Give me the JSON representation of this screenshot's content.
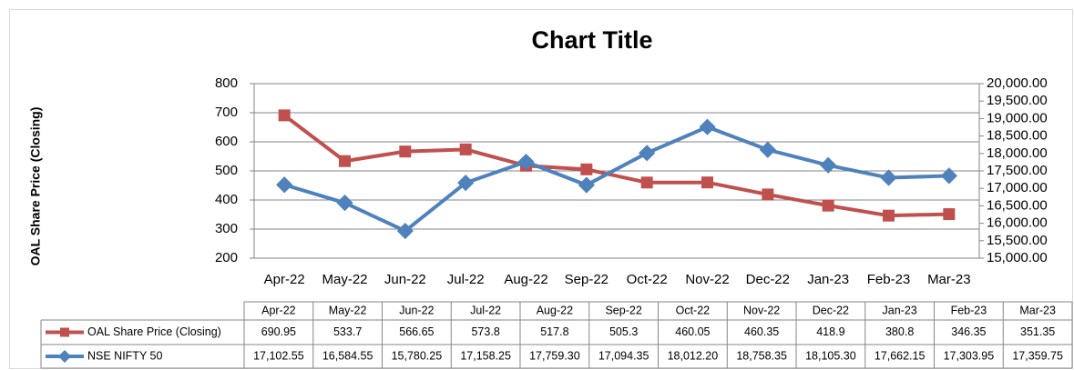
{
  "chart_data": {
    "type": "line",
    "title": "Chart Title",
    "y_label": "OAL Share Price (Closing)",
    "categories": [
      "Apr-22",
      "May-22",
      "Jun-22",
      "Jul-22",
      "Aug-22",
      "Sep-22",
      "Oct-22",
      "Nov-22",
      "Dec-22",
      "Jan-23",
      "Feb-23",
      "Mar-23"
    ],
    "series": [
      {
        "name": "OAL Share Price (Closing)",
        "color": "#c0504d",
        "marker": "square",
        "axis": "y",
        "values": [
          690.95,
          533.7,
          566.65,
          573.8,
          517.8,
          505.3,
          460.05,
          460.35,
          418.9,
          380.8,
          346.35,
          351.35
        ]
      },
      {
        "name": "NSE NIFTY 50",
        "color": "#4f81bd",
        "marker": "diamond",
        "axis": "y2",
        "values": [
          17102.55,
          16584.55,
          15780.25,
          17158.25,
          17759.3,
          17094.35,
          18012.2,
          18758.35,
          18105.3,
          17662.15,
          17303.95,
          17359.75
        ],
        "value_labels": [
          "17,102.55",
          "16,584.55",
          "15,780.25",
          "17,158.25",
          "17,759.30",
          "17,094.35",
          "18,012.20",
          "18,758.35",
          "18,105.30",
          "17,662.15",
          "17,303.95",
          "17,359.75"
        ]
      }
    ],
    "ylim": [
      200,
      800
    ],
    "yticks": [
      200,
      300,
      400,
      500,
      600,
      700,
      800
    ],
    "y2lim": [
      15000,
      20000
    ],
    "y2ticks": [
      {
        "value": 15000,
        "label": "15,000.00"
      },
      {
        "value": 15500,
        "label": "15,500.00"
      },
      {
        "value": 16000,
        "label": "16,000.00"
      },
      {
        "value": 16500,
        "label": "16,500.00"
      },
      {
        "value": 17000,
        "label": "17,000.00"
      },
      {
        "value": 17500,
        "label": "17,500.00"
      },
      {
        "value": 18000,
        "label": "18,000.00"
      },
      {
        "value": 18500,
        "label": "18,500.00"
      },
      {
        "value": 19000,
        "label": "19,000.00"
      },
      {
        "value": 19500,
        "label": "19,500.00"
      },
      {
        "value": 20000,
        "label": "20,000.00"
      }
    ],
    "grid": true,
    "data_table": true
  }
}
